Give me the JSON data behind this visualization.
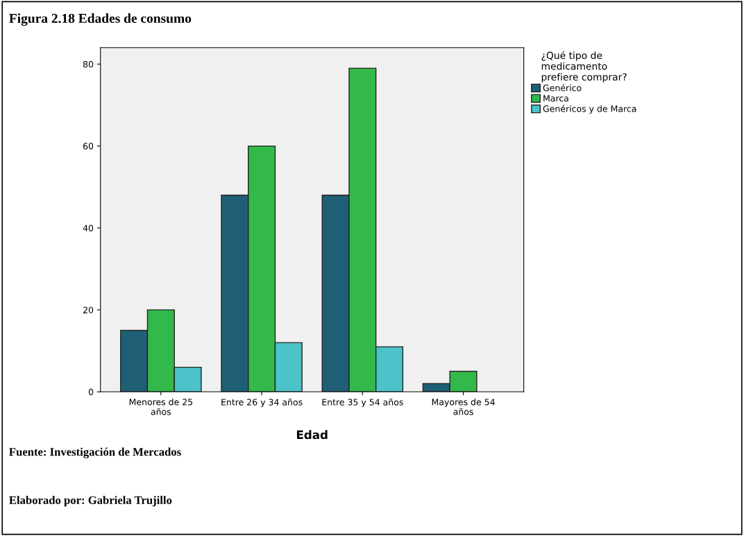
{
  "chart_data": {
    "type": "bar",
    "title": "Figura 2.18 Edades de consumo",
    "xlabel": "Edad",
    "legend_title": "¿Qué tipo de\nmedicamento\nprefiere comprar?",
    "categories": [
      "Menores de 25\naños",
      "Entre 26 y 34 años",
      "Entre 35 y 54 años",
      "Mayores de 54\naños"
    ],
    "series": [
      {
        "name": "Genérico",
        "color": "#1f5f75",
        "values": [
          15,
          48,
          48,
          2
        ]
      },
      {
        "name": "Marca",
        "color": "#33b84a",
        "values": [
          20,
          60,
          79,
          5
        ]
      },
      {
        "name": "Genéricos y de Marca",
        "color": "#4bc3c8",
        "values": [
          6,
          12,
          11,
          null
        ]
      }
    ],
    "ylim": [
      0,
      84
    ],
    "yticks": [
      0,
      20,
      40,
      60,
      80
    ],
    "grid": false,
    "legend": "right",
    "annotations": [
      "Fuente: Investigación de Mercados",
      "Elaborado por: Gabriela Trujillo"
    ]
  }
}
